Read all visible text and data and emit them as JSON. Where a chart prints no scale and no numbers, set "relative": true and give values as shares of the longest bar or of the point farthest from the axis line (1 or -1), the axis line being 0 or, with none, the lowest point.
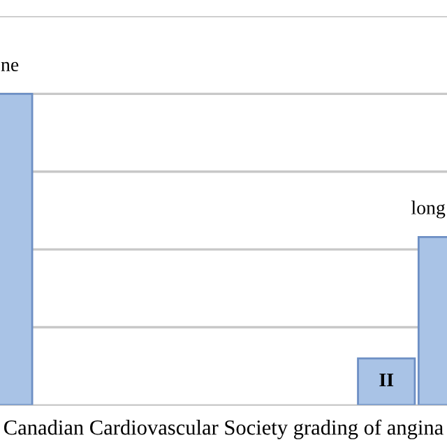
{
  "chart_data": {
    "type": "bar",
    "relative": true,
    "xlabel": "Canadian Cardiovascular Society grading of angina",
    "categories": [
      null,
      null,
      null
    ],
    "values": [
      1,
      0.15,
      0.54
    ],
    "color": "#a9c3e6",
    "annotations": [
      "ne",
      "II",
      "long"
    ],
    "grid": "y"
  }
}
